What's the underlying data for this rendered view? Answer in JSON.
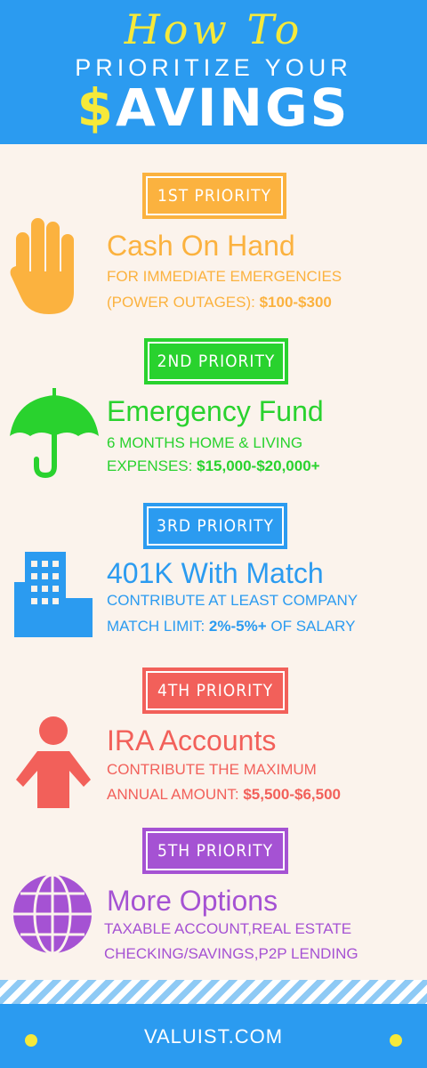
{
  "header": {
    "script_title": "How To",
    "subtitle": "PRIORITIZE YOUR",
    "big_dollar": "$",
    "big_rest": "AVINGS"
  },
  "priorities": [
    {
      "badge": "1ST PRIORITY",
      "title": "Cash On Hand",
      "line1": "FOR IMMEDIATE EMERGENCIES",
      "line2_prefix": "(POWER OUTAGES): ",
      "line2_bold": "$100-$300",
      "line2_suffix": "",
      "color": "#fbb23f",
      "icon": "hand-icon"
    },
    {
      "badge": "2ND PRIORITY",
      "title": "Emergency Fund",
      "line1": "6 MONTHS HOME & LIVING",
      "line2_prefix": "EXPENSES: ",
      "line2_bold": "$15,000-$20,000+",
      "line2_suffix": "",
      "color": "#29d22e",
      "icon": "umbrella-icon"
    },
    {
      "badge": "3RD PRIORITY",
      "title": "401K With Match",
      "line1": "CONTRIBUTE AT LEAST COMPANY",
      "line2_prefix": "MATCH LIMIT: ",
      "line2_bold": "2%-5%+",
      "line2_suffix": " OF SALARY",
      "color": "#2b9bf0",
      "icon": "building-icon"
    },
    {
      "badge": "4TH PRIORITY",
      "title": "IRA Accounts",
      "line1": "CONTRIBUTE THE MAXIMUM",
      "line2_prefix": "ANNUAL AMOUNT: ",
      "line2_bold": "$5,500-$6,500",
      "line2_suffix": "",
      "color": "#f2605a",
      "icon": "person-icon"
    },
    {
      "badge": "5TH PRIORITY",
      "title": "More Options",
      "line1": "TAXABLE ACCOUNT,REAL ESTATE",
      "line2_prefix": "CHECKING/SAVINGS,P2P LENDING",
      "line2_bold": "",
      "line2_suffix": "",
      "color": "#a552d3",
      "icon": "globe-icon"
    }
  ],
  "footer": {
    "text": "VALUIST.COM",
    "dot_color": "#f6e93a"
  }
}
